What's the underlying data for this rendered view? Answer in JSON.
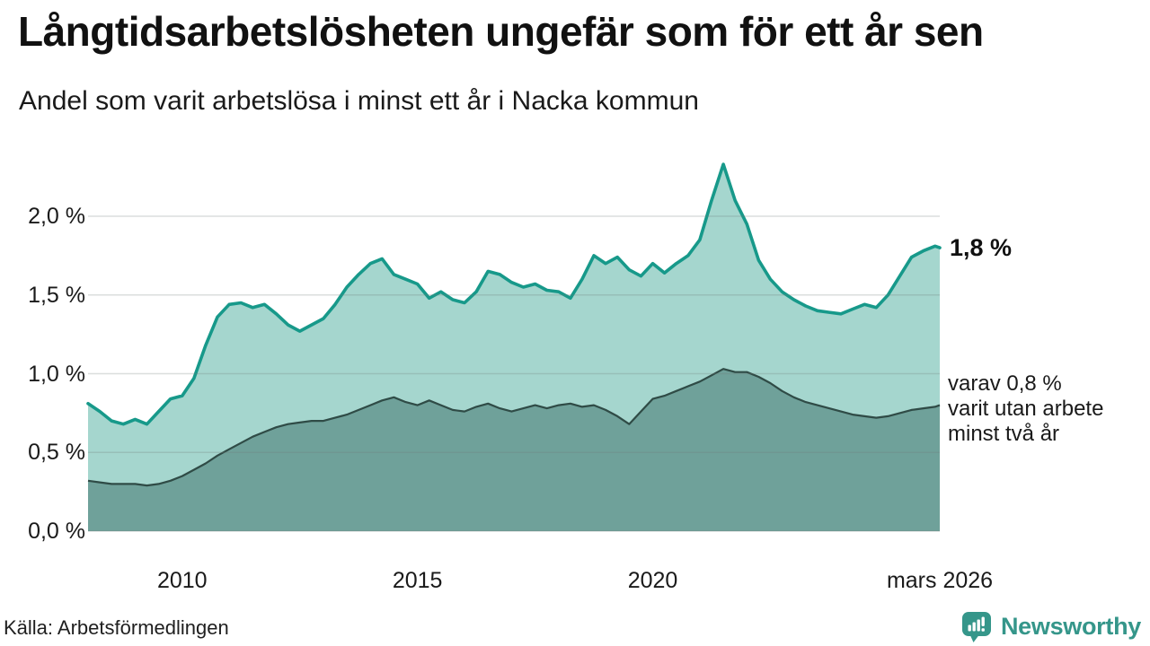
{
  "title": "Långtidsarbetslösheten ungefär som för ett år sen",
  "subtitle": "Andel som varit arbetslösa i minst ett år i Nacka kommun",
  "source": "Källa: Arbetsförmedlingen",
  "branding": {
    "name": "Newsworthy",
    "color": "#35968a",
    "icon": "newsworthy-speech-bubble-chart"
  },
  "annotations": {
    "total_label": "1,8 %",
    "subset_lines": [
      "varav 0,8 %",
      "varit utan arbete",
      "minst två år"
    ]
  },
  "colors": {
    "line_total": "#17998a",
    "fill_total": "#a5d6ce",
    "line_subset": "#2f4b46",
    "fill_subset": "#6fa19a",
    "grid": "rgba(110,125,120,0.25)",
    "text": "#1a1a1a"
  },
  "chart_data": {
    "type": "area",
    "title": "Långtidsarbetslösheten ungefär som för ett år sen",
    "subtitle": "Andel som varit arbetslösa i minst ett år i Nacka kommun",
    "unit": "%",
    "grid": true,
    "ylim": [
      0,
      2.4
    ],
    "x": [
      2008,
      2008.25,
      2008.5,
      2008.75,
      2009,
      2009.25,
      2009.5,
      2009.75,
      2010,
      2010.25,
      2010.5,
      2010.75,
      2011,
      2011.25,
      2011.5,
      2011.75,
      2012,
      2012.25,
      2012.5,
      2012.75,
      2013,
      2013.25,
      2013.5,
      2013.75,
      2014,
      2014.25,
      2014.5,
      2014.75,
      2015,
      2015.25,
      2015.5,
      2015.75,
      2016,
      2016.25,
      2016.5,
      2016.75,
      2017,
      2017.25,
      2017.5,
      2017.75,
      2018,
      2018.25,
      2018.5,
      2018.75,
      2019,
      2019.25,
      2019.5,
      2019.75,
      2020,
      2020.25,
      2020.5,
      2020.75,
      2021,
      2021.25,
      2021.5,
      2021.75,
      2022,
      2022.25,
      2022.5,
      2022.75,
      2023,
      2023.25,
      2023.5,
      2023.75,
      2024,
      2024.25,
      2024.5,
      2024.75,
      2025,
      2025.25,
      2025.5,
      2025.75,
      2026,
      2026.1
    ],
    "series": [
      {
        "name": "Andel arbetslösa minst ett år",
        "end_label": "1,8 %",
        "end_value": 1.8,
        "values": [
          0.81,
          0.76,
          0.7,
          0.68,
          0.71,
          0.68,
          0.76,
          0.84,
          0.86,
          0.97,
          1.18,
          1.36,
          1.44,
          1.45,
          1.42,
          1.44,
          1.38,
          1.31,
          1.27,
          1.31,
          1.35,
          1.44,
          1.55,
          1.63,
          1.7,
          1.73,
          1.63,
          1.6,
          1.57,
          1.48,
          1.52,
          1.47,
          1.45,
          1.52,
          1.65,
          1.63,
          1.58,
          1.55,
          1.57,
          1.53,
          1.52,
          1.48,
          1.6,
          1.75,
          1.7,
          1.74,
          1.66,
          1.62,
          1.7,
          1.64,
          1.7,
          1.75,
          1.85,
          2.1,
          2.33,
          2.1,
          1.95,
          1.72,
          1.6,
          1.52,
          1.47,
          1.43,
          1.4,
          1.39,
          1.38,
          1.41,
          1.44,
          1.42,
          1.5,
          1.62,
          1.74,
          1.78,
          1.81,
          1.8
        ]
      },
      {
        "name": "varav utan arbete minst två år",
        "end_label": "varav 0,8 % varit utan arbete minst två år",
        "end_value": 0.8,
        "values": [
          0.32,
          0.31,
          0.3,
          0.3,
          0.3,
          0.29,
          0.3,
          0.32,
          0.35,
          0.39,
          0.43,
          0.48,
          0.52,
          0.56,
          0.6,
          0.63,
          0.66,
          0.68,
          0.69,
          0.7,
          0.7,
          0.72,
          0.74,
          0.77,
          0.8,
          0.83,
          0.85,
          0.82,
          0.8,
          0.83,
          0.8,
          0.77,
          0.76,
          0.79,
          0.81,
          0.78,
          0.76,
          0.78,
          0.8,
          0.78,
          0.8,
          0.81,
          0.79,
          0.8,
          0.77,
          0.73,
          0.68,
          0.76,
          0.84,
          0.86,
          0.89,
          0.92,
          0.95,
          0.99,
          1.03,
          1.01,
          1.01,
          0.98,
          0.94,
          0.89,
          0.85,
          0.82,
          0.8,
          0.78,
          0.76,
          0.74,
          0.73,
          0.72,
          0.73,
          0.75,
          0.77,
          0.78,
          0.79,
          0.8
        ]
      }
    ],
    "y_ticks": [
      {
        "value": 0.0,
        "label": "0,0 %"
      },
      {
        "value": 0.5,
        "label": "0,5 %"
      },
      {
        "value": 1.0,
        "label": "1,0 %"
      },
      {
        "value": 1.5,
        "label": "1,5 %"
      },
      {
        "value": 2.0,
        "label": "2,0 %"
      }
    ],
    "x_ticks": [
      {
        "value": 2010,
        "label": "2010"
      },
      {
        "value": 2015,
        "label": "2015"
      },
      {
        "value": 2020,
        "label": "2020"
      },
      {
        "value": 2026.1,
        "label": "mars 2026"
      }
    ]
  }
}
